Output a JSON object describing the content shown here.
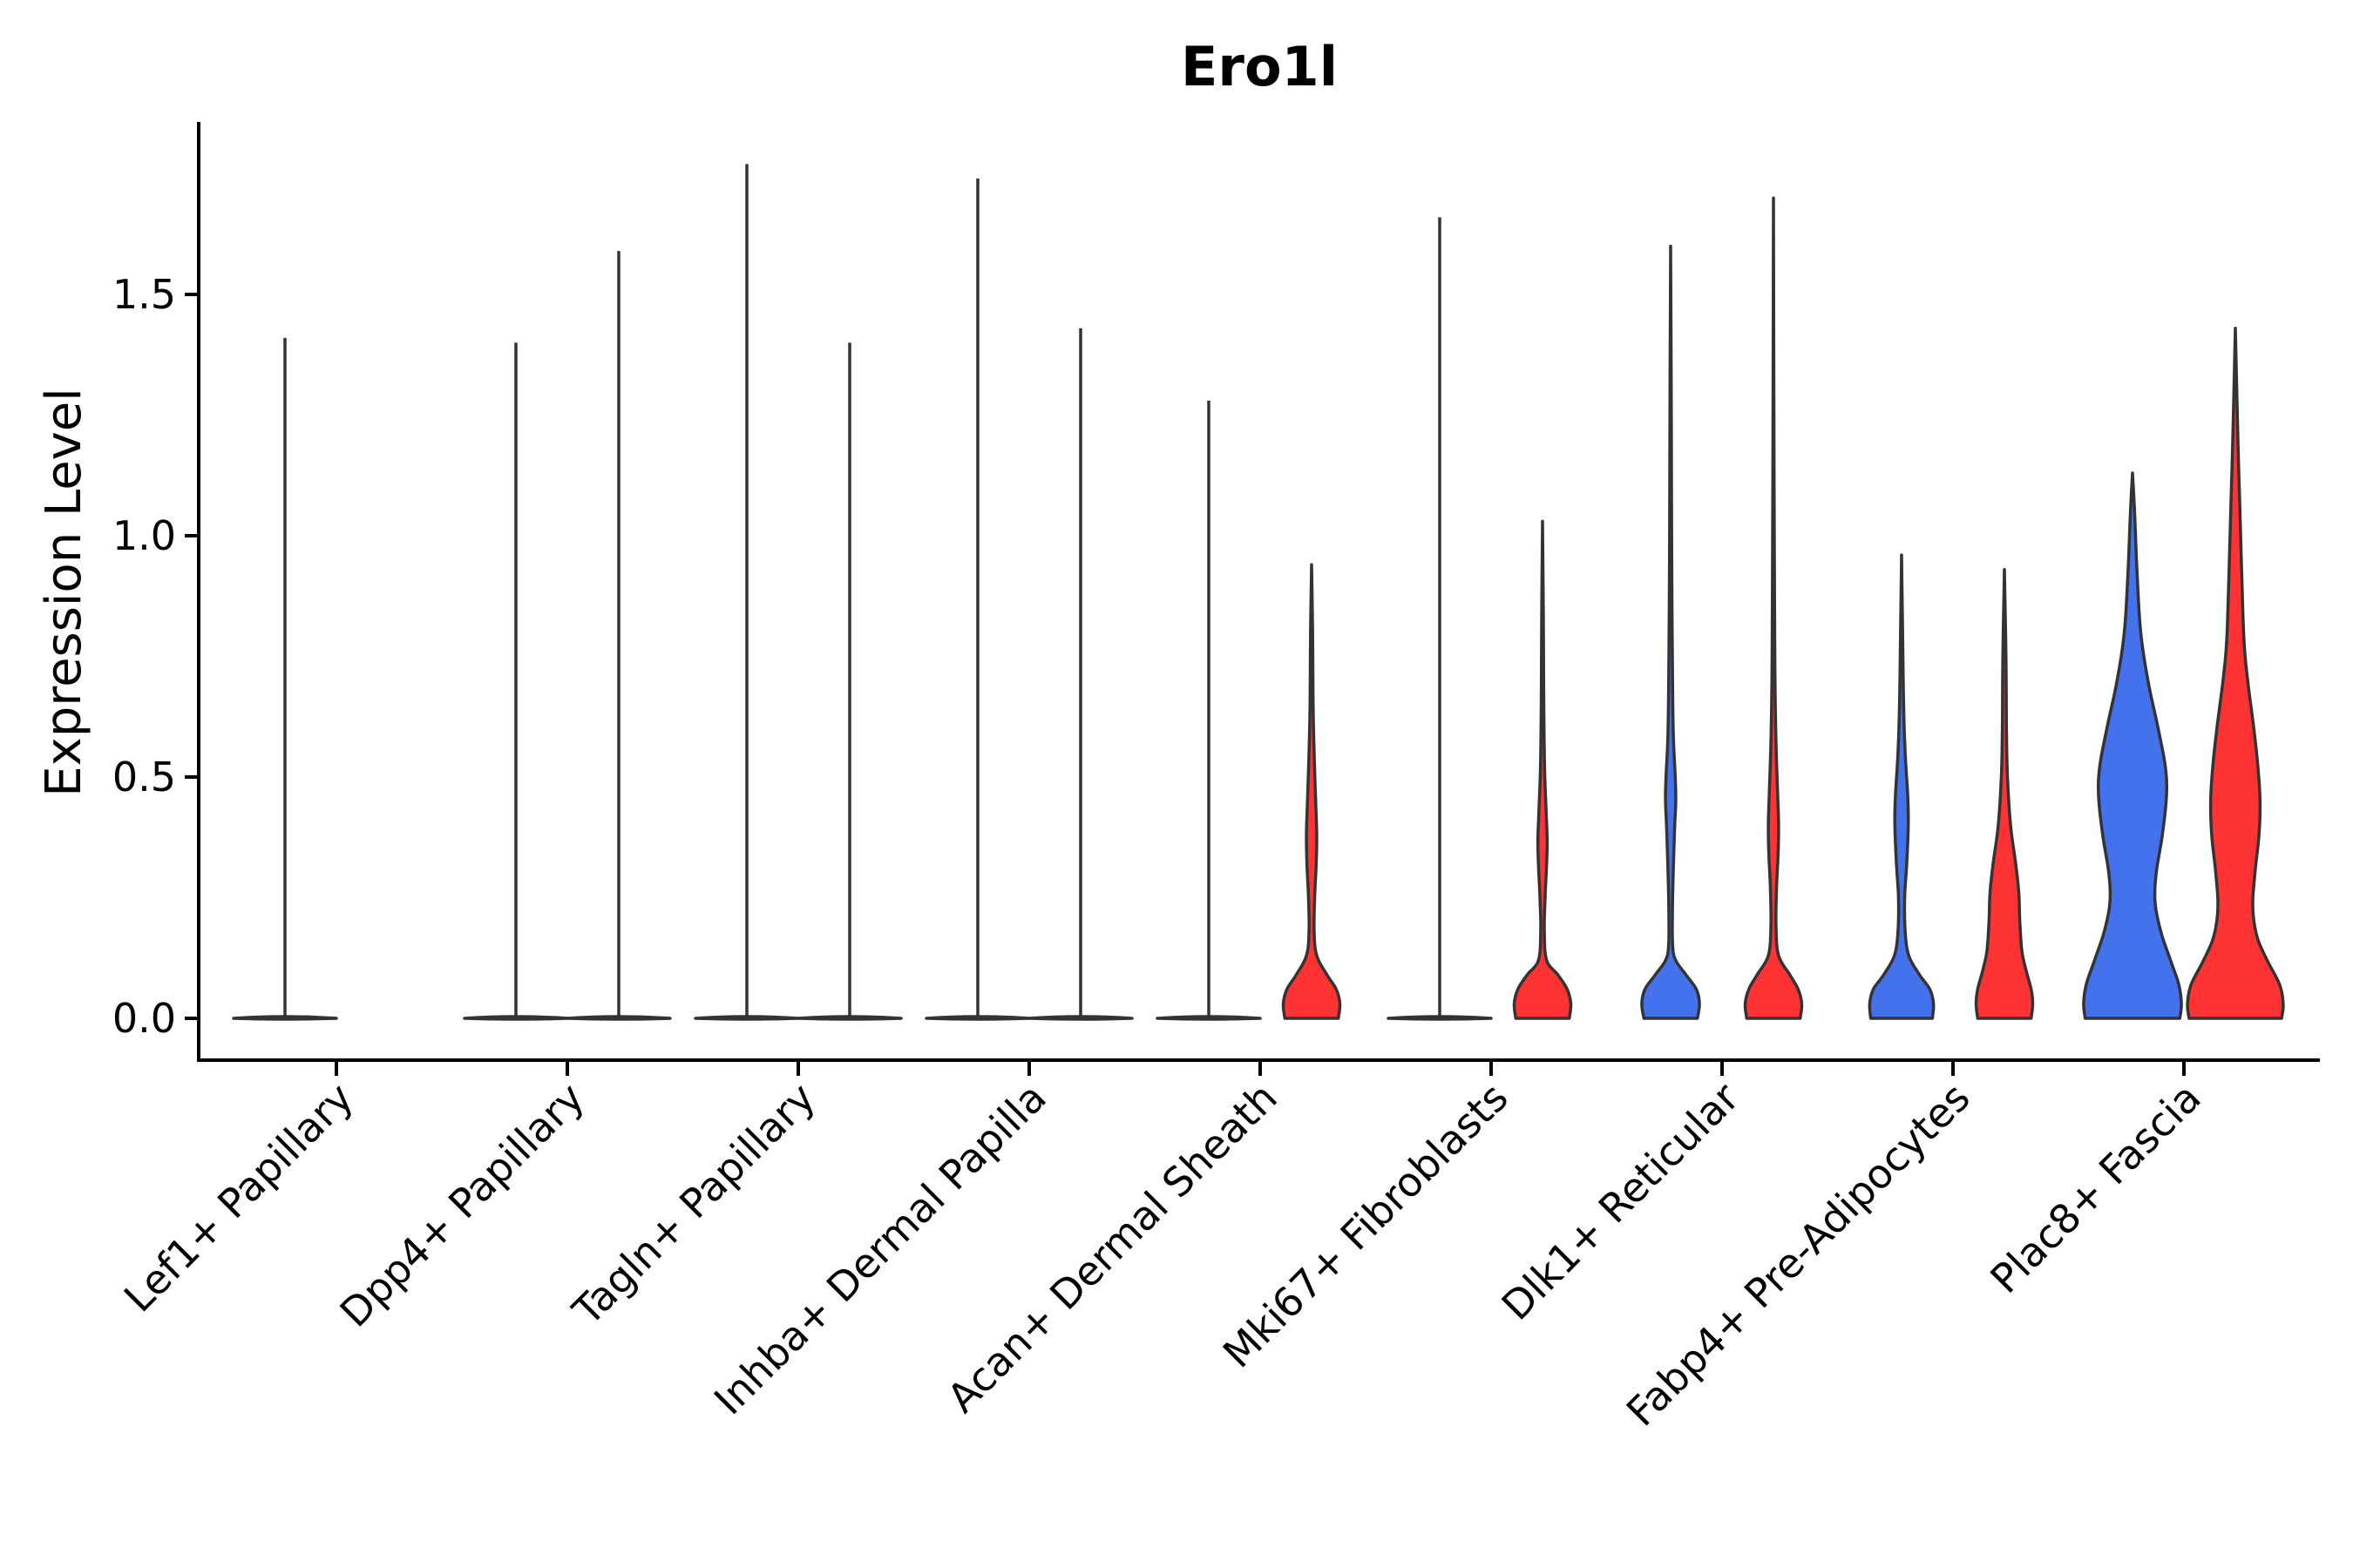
{
  "chart_data": {
    "type": "violin",
    "title": "Ero1l",
    "xlabel": "",
    "ylabel": "Expression Level",
    "ylim": [
      -0.09,
      1.86
    ],
    "yticks": [
      0.0,
      0.5,
      1.0,
      1.5
    ],
    "ytick_labels": [
      "0.0",
      "0.5",
      "1.0",
      "1.5"
    ],
    "grid": false,
    "legend": "none",
    "colors": {
      "group_a": "#4472ED",
      "group_b": "#FF3333",
      "outline": "#333333"
    },
    "categories": [
      "Lef1+ Papillary",
      "Dpp4+ Papillary",
      "Tagln+ Papillary",
      "Inhba+ Dermal Papilla",
      "Acan+ Dermal Sheath",
      "Mki67+ Fibroblasts",
      "Dlk1+ Reticular",
      "Fabp4+ Pre-Adipocytes",
      "Plac8+ Fascia"
    ],
    "series": [
      {
        "name": "group_a",
        "color": "#4472ED",
        "max_values": [
          1.41,
          1.4,
          1.77,
          1.74,
          1.28,
          1.66,
          1.6,
          0.96,
          1.13
        ],
        "density": [
          null,
          null,
          null,
          null,
          null,
          null,
          [
            [
              0.0,
              0.52
            ],
            [
              0.03,
              0.56
            ],
            [
              0.06,
              0.5
            ],
            [
              0.09,
              0.3
            ],
            [
              0.12,
              0.1
            ],
            [
              0.15,
              0.04
            ],
            [
              0.22,
              0.035
            ],
            [
              0.3,
              0.05
            ],
            [
              0.4,
              0.08
            ],
            [
              0.45,
              0.1
            ],
            [
              0.5,
              0.09
            ],
            [
              0.6,
              0.05
            ],
            [
              0.8,
              0.03
            ],
            [
              1.0,
              0.02
            ],
            [
              1.3,
              0.012
            ],
            [
              1.6,
              0.0
            ]
          ],
          [
            [
              0.0,
              0.6
            ],
            [
              0.03,
              0.62
            ],
            [
              0.06,
              0.55
            ],
            [
              0.09,
              0.35
            ],
            [
              0.13,
              0.14
            ],
            [
              0.18,
              0.07
            ],
            [
              0.25,
              0.06
            ],
            [
              0.32,
              0.1
            ],
            [
              0.4,
              0.13
            ],
            [
              0.46,
              0.12
            ],
            [
              0.55,
              0.07
            ],
            [
              0.65,
              0.04
            ],
            [
              0.8,
              0.02
            ],
            [
              0.96,
              0.0
            ]
          ],
          [
            [
              0.0,
              0.92
            ],
            [
              0.03,
              0.95
            ],
            [
              0.07,
              0.9
            ],
            [
              0.12,
              0.74
            ],
            [
              0.18,
              0.55
            ],
            [
              0.24,
              0.44
            ],
            [
              0.3,
              0.46
            ],
            [
              0.38,
              0.58
            ],
            [
              0.46,
              0.66
            ],
            [
              0.52,
              0.64
            ],
            [
              0.6,
              0.5
            ],
            [
              0.7,
              0.3
            ],
            [
              0.8,
              0.16
            ],
            [
              0.92,
              0.09
            ],
            [
              1.05,
              0.04
            ],
            [
              1.13,
              0.0
            ]
          ]
        ]
      },
      {
        "name": "group_b",
        "color": "#FF3333",
        "max_values": [
          null,
          1.59,
          1.4,
          1.43,
          0.94,
          1.03,
          1.7,
          0.93,
          1.43
        ],
        "density": [
          null,
          null,
          null,
          null,
          [
            [
              0.0,
              0.52
            ],
            [
              0.03,
              0.55
            ],
            [
              0.06,
              0.48
            ],
            [
              0.09,
              0.3
            ],
            [
              0.13,
              0.1
            ],
            [
              0.18,
              0.05
            ],
            [
              0.25,
              0.06
            ],
            [
              0.32,
              0.09
            ],
            [
              0.38,
              0.1
            ],
            [
              0.45,
              0.08
            ],
            [
              0.55,
              0.05
            ],
            [
              0.65,
              0.03
            ],
            [
              0.8,
              0.02
            ],
            [
              0.94,
              0.0
            ]
          ],
          [
            [
              0.0,
              0.52
            ],
            [
              0.03,
              0.55
            ],
            [
              0.06,
              0.48
            ],
            [
              0.09,
              0.3
            ],
            [
              0.12,
              0.08
            ],
            [
              0.18,
              0.035
            ],
            [
              0.25,
              0.05
            ],
            [
              0.32,
              0.08
            ],
            [
              0.37,
              0.09
            ],
            [
              0.43,
              0.07
            ],
            [
              0.52,
              0.04
            ],
            [
              0.65,
              0.025
            ],
            [
              0.85,
              0.015
            ],
            [
              1.03,
              0.0
            ]
          ],
          [
            [
              0.0,
              0.52
            ],
            [
              0.03,
              0.55
            ],
            [
              0.06,
              0.48
            ],
            [
              0.09,
              0.32
            ],
            [
              0.13,
              0.1
            ],
            [
              0.19,
              0.05
            ],
            [
              0.27,
              0.06
            ],
            [
              0.34,
              0.09
            ],
            [
              0.4,
              0.1
            ],
            [
              0.47,
              0.08
            ],
            [
              0.57,
              0.05
            ],
            [
              0.7,
              0.03
            ],
            [
              0.9,
              0.02
            ],
            [
              1.2,
              0.01
            ],
            [
              1.7,
              0.0
            ]
          ],
          [
            [
              0.0,
              0.52
            ],
            [
              0.03,
              0.55
            ],
            [
              0.06,
              0.52
            ],
            [
              0.1,
              0.42
            ],
            [
              0.14,
              0.34
            ],
            [
              0.2,
              0.3
            ],
            [
              0.26,
              0.28
            ],
            [
              0.32,
              0.22
            ],
            [
              0.4,
              0.12
            ],
            [
              0.5,
              0.06
            ],
            [
              0.6,
              0.04
            ],
            [
              0.75,
              0.03
            ],
            [
              0.93,
              0.0
            ]
          ],
          [
            [
              0.0,
              0.9
            ],
            [
              0.03,
              0.93
            ],
            [
              0.07,
              0.86
            ],
            [
              0.12,
              0.62
            ],
            [
              0.17,
              0.42
            ],
            [
              0.23,
              0.34
            ],
            [
              0.3,
              0.38
            ],
            [
              0.38,
              0.46
            ],
            [
              0.45,
              0.48
            ],
            [
              0.52,
              0.44
            ],
            [
              0.6,
              0.36
            ],
            [
              0.7,
              0.24
            ],
            [
              0.78,
              0.17
            ],
            [
              0.9,
              0.13
            ],
            [
              1.05,
              0.09
            ],
            [
              1.2,
              0.05
            ],
            [
              1.43,
              0.0
            ]
          ]
        ]
      }
    ]
  }
}
